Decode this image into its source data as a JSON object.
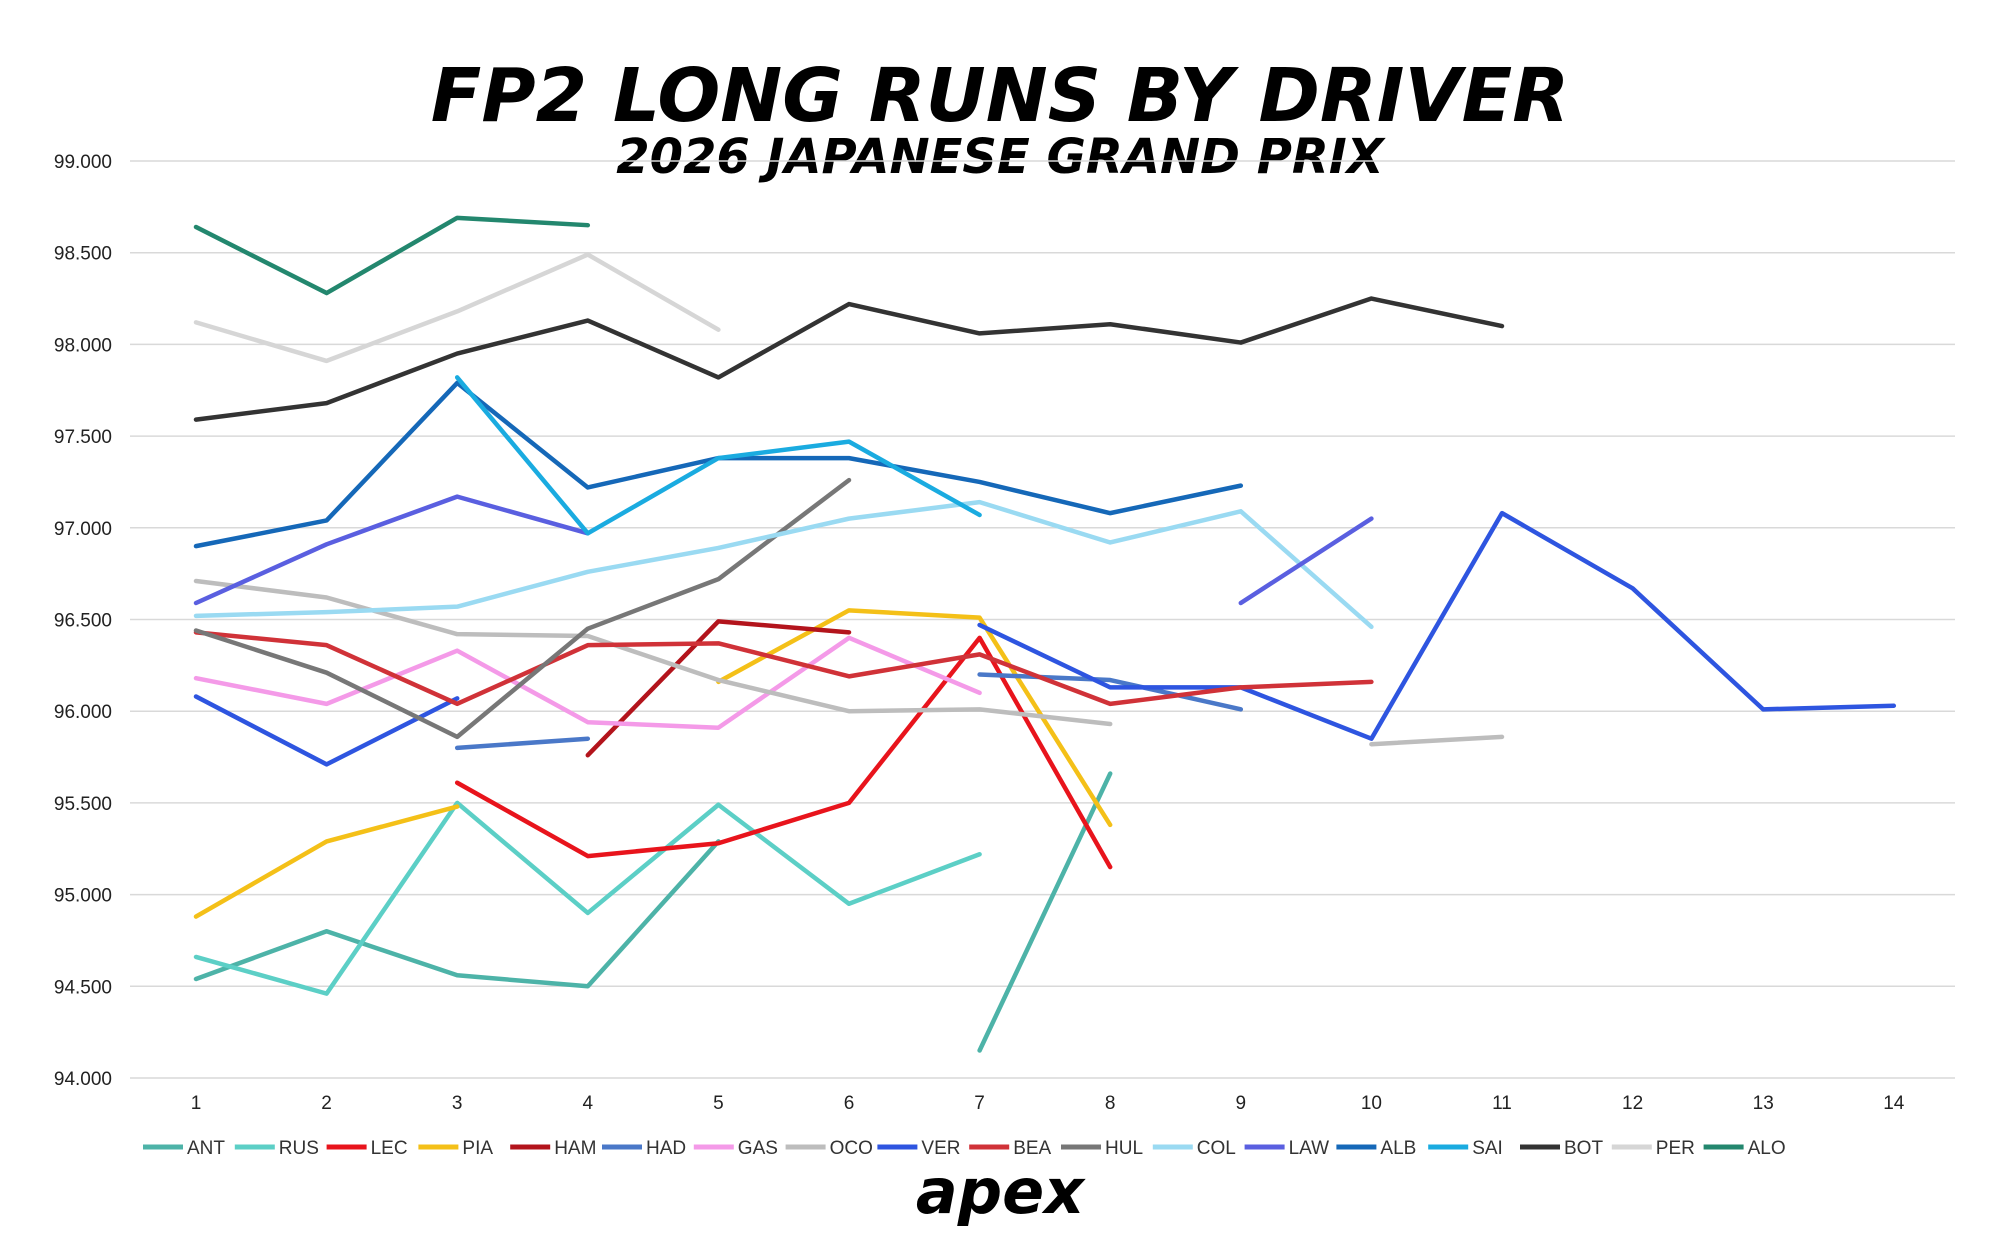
{
  "chart_data": {
    "type": "line",
    "title": "FP2 LONG RUNS BY DRIVER",
    "subtitle": "2026 JAPANESE GRAND PRIX",
    "xlabel": "",
    "ylabel": "",
    "x_categories": [
      "1",
      "2",
      "3",
      "4",
      "5",
      "6",
      "7",
      "8",
      "9",
      "10",
      "11",
      "12",
      "13",
      "14"
    ],
    "ylim": [
      94.0,
      99.0
    ],
    "y_ticks": [
      "94.000",
      "94.500",
      "95.000",
      "95.500",
      "96.000",
      "96.500",
      "97.000",
      "97.500",
      "98.000",
      "98.500",
      "99.000"
    ],
    "grid": "horizontal",
    "legend_position": "bottom",
    "series": [
      {
        "name": "ANT",
        "color": "#4DB3A8",
        "x": [
          1,
          2,
          3,
          4,
          5,
          7,
          8
        ],
        "y": [
          94.54,
          94.8,
          94.56,
          94.5,
          95.29,
          94.15,
          95.66
        ],
        "breaks_after": [
          5
        ]
      },
      {
        "name": "RUS",
        "color": "#5CCFC6",
        "x": [
          1,
          2,
          3,
          4,
          5,
          6,
          7
        ],
        "y": [
          94.66,
          94.46,
          95.5,
          94.9,
          95.49,
          94.95,
          95.22
        ]
      },
      {
        "name": "LEC",
        "color": "#E8141C",
        "x": [
          3,
          4,
          5,
          6,
          7,
          8
        ],
        "y": [
          95.61,
          95.21,
          95.28,
          95.5,
          96.4,
          95.15
        ]
      },
      {
        "name": "PIA",
        "color": "#F4C018",
        "x": [
          1,
          2,
          3,
          5,
          6,
          7,
          8
        ],
        "y": [
          94.88,
          95.29,
          95.48,
          96.16,
          96.55,
          96.51,
          95.38
        ],
        "breaks_after": [
          3
        ]
      },
      {
        "name": "HAM",
        "color": "#B3141C",
        "x": [
          4,
          5,
          6
        ],
        "y": [
          95.76,
          96.49,
          96.43
        ]
      },
      {
        "name": "HAD",
        "color": "#4A78C8",
        "x": [
          3,
          4,
          7,
          8,
          9
        ],
        "y": [
          95.8,
          95.85,
          96.2,
          96.17,
          96.01
        ],
        "breaks_after": [
          4
        ]
      },
      {
        "name": "GAS",
        "color": "#F49AE8",
        "x": [
          1,
          2,
          3,
          4,
          5,
          6,
          7
        ],
        "y": [
          96.18,
          96.04,
          96.33,
          95.94,
          95.91,
          96.4,
          96.1
        ]
      },
      {
        "name": "OCO",
        "color": "#BDBDBD",
        "x": [
          1,
          2,
          3,
          4,
          5,
          6,
          7,
          8,
          10,
          11
        ],
        "y": [
          96.71,
          96.62,
          96.42,
          96.41,
          96.17,
          96.0,
          96.01,
          95.93,
          95.82,
          95.86
        ],
        "breaks_after": [
          8
        ]
      },
      {
        "name": "VER",
        "color": "#2E55E0",
        "x": [
          1,
          2,
          3,
          7,
          8,
          9,
          10,
          11,
          12,
          13,
          14
        ],
        "y": [
          96.08,
          95.71,
          96.07,
          96.47,
          96.13,
          96.13,
          95.85,
          97.08,
          96.67,
          96.01,
          96.03
        ],
        "breaks_after": [
          3
        ]
      },
      {
        "name": "BEA",
        "color": "#D03238",
        "x": [
          1,
          2,
          3,
          4,
          5,
          6,
          7,
          8,
          9,
          10
        ],
        "y": [
          96.43,
          96.36,
          96.04,
          96.36,
          96.37,
          96.19,
          96.31,
          96.04,
          96.13,
          96.16
        ]
      },
      {
        "name": "HUL",
        "color": "#777777",
        "x": [
          1,
          2,
          3,
          4,
          5,
          6
        ],
        "y": [
          96.44,
          96.21,
          95.86,
          96.45,
          96.72,
          97.26
        ]
      },
      {
        "name": "COL",
        "color": "#9ADAF2",
        "x": [
          1,
          2,
          3,
          4,
          5,
          6,
          7,
          8,
          9,
          10
        ],
        "y": [
          96.52,
          96.54,
          96.57,
          96.76,
          96.89,
          97.05,
          97.14,
          96.92,
          97.09,
          96.46
        ]
      },
      {
        "name": "LAW",
        "color": "#5A5FE0",
        "x": [
          1,
          2,
          3,
          4,
          9,
          10
        ],
        "y": [
          96.59,
          96.91,
          97.17,
          96.97,
          96.59,
          97.05
        ],
        "breaks_after": [
          4
        ]
      },
      {
        "name": "ALB",
        "color": "#1568B8",
        "x": [
          1,
          2,
          3,
          4,
          5,
          6,
          7,
          8,
          9
        ],
        "y": [
          96.9,
          97.04,
          97.79,
          97.22,
          97.38,
          97.38,
          97.25,
          97.08,
          97.23
        ]
      },
      {
        "name": "SAI",
        "color": "#1AABE0",
        "x": [
          3,
          4,
          5,
          6,
          7
        ],
        "y": [
          97.82,
          96.97,
          97.38,
          97.47,
          97.07
        ]
      },
      {
        "name": "BOT",
        "color": "#333333",
        "x": [
          1,
          2,
          3,
          4,
          5,
          6,
          7,
          8,
          9,
          10,
          11
        ],
        "y": [
          97.59,
          97.68,
          97.95,
          98.13,
          97.82,
          98.22,
          98.06,
          98.11,
          98.01,
          98.25,
          98.1
        ]
      },
      {
        "name": "PER",
        "color": "#D6D6D6",
        "x": [
          1,
          2,
          3,
          4,
          5
        ],
        "y": [
          98.12,
          97.91,
          98.18,
          98.49,
          98.08
        ]
      },
      {
        "name": "ALO",
        "color": "#23876E",
        "x": [
          1,
          2,
          3,
          4
        ],
        "y": [
          98.64,
          98.28,
          98.69,
          98.65
        ]
      }
    ]
  },
  "logo": {
    "text": "apex"
  }
}
